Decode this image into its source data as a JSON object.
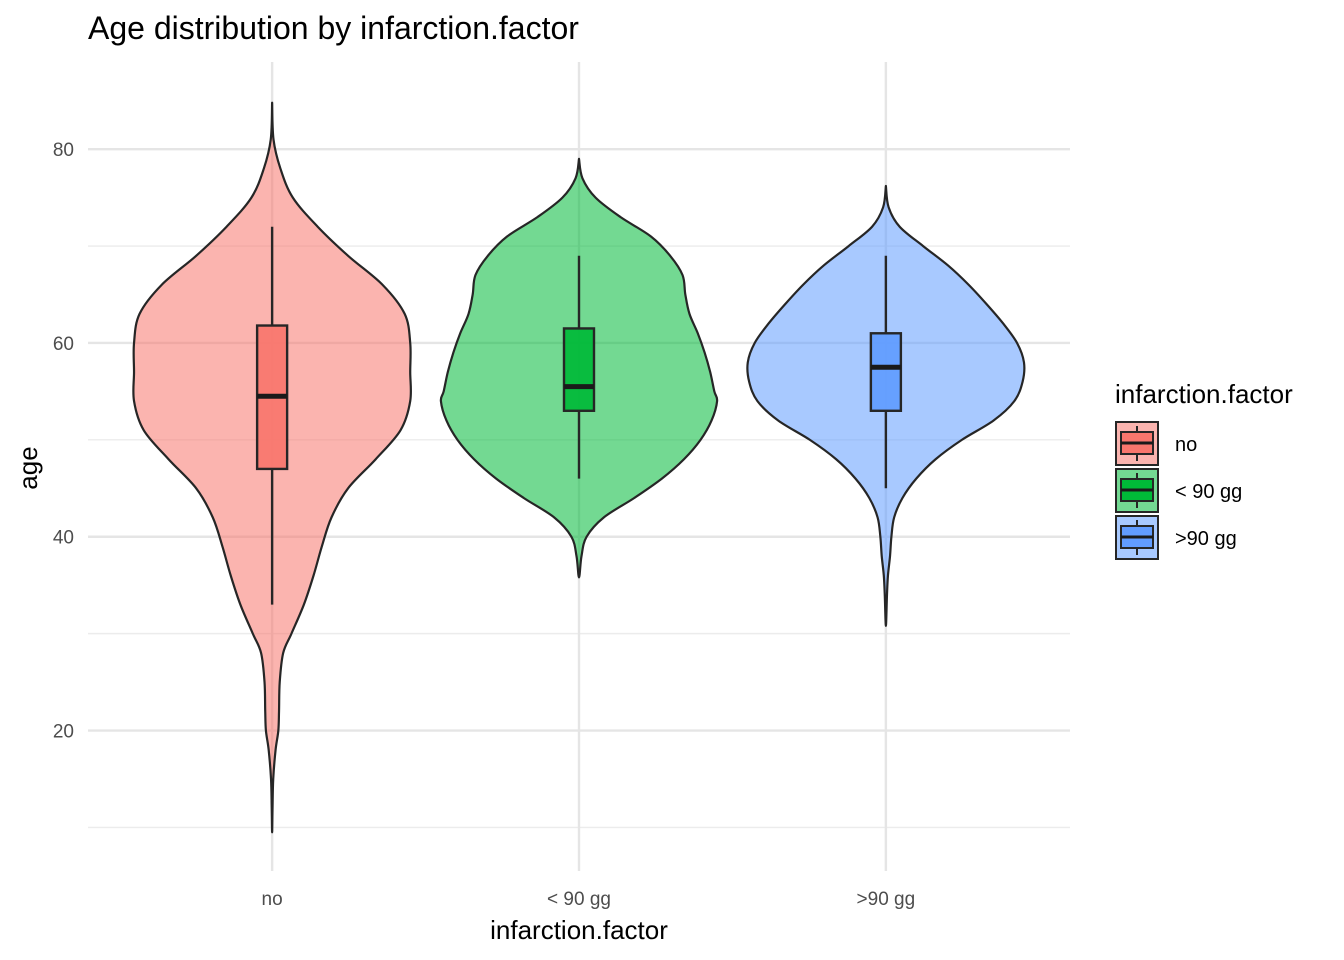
{
  "chart_data": {
    "type": "violin",
    "title": "Age distribution by infarction.factor",
    "xlabel": "infarction.factor",
    "ylabel": "age",
    "ylim": [
      5.5,
      89
    ],
    "y_ticks": [
      20,
      40,
      60,
      80
    ],
    "y_minor_ticks": [
      10,
      30,
      50,
      70
    ],
    "categories": [
      "no",
      "< 90 gg",
      ">90 gg"
    ],
    "grid": true,
    "legend": {
      "title": "infarction.factor",
      "position": "right",
      "entries": [
        "no",
        "< 90 gg",
        ">90 gg"
      ]
    },
    "series": [
      {
        "name": "no",
        "color": "#F8766D",
        "box": {
          "lower_whisker": 33,
          "q1": 47,
          "median": 54.5,
          "q3": 61.8,
          "upper_whisker": 72
        },
        "violin_range": [
          9.5,
          84.8
        ],
        "density_profile": [
          [
            84.8,
            0.0
          ],
          [
            81,
            0.01
          ],
          [
            78,
            0.06
          ],
          [
            75,
            0.15
          ],
          [
            72,
            0.33
          ],
          [
            69,
            0.55
          ],
          [
            66,
            0.8
          ],
          [
            63,
            0.96
          ],
          [
            60,
            1.0
          ],
          [
            57,
            1.0
          ],
          [
            54,
            1.0
          ],
          [
            51,
            0.93
          ],
          [
            48,
            0.75
          ],
          [
            45,
            0.55
          ],
          [
            42,
            0.43
          ],
          [
            39,
            0.36
          ],
          [
            36,
            0.3
          ],
          [
            33,
            0.23
          ],
          [
            30,
            0.14
          ],
          [
            28,
            0.08
          ],
          [
            25,
            0.055
          ],
          [
            22,
            0.05
          ],
          [
            20,
            0.045
          ],
          [
            18,
            0.025
          ],
          [
            15,
            0.008
          ],
          [
            12,
            0.003
          ],
          [
            9.5,
            0.0
          ]
        ]
      },
      {
        "name": "< 90 gg",
        "color": "#00BA38",
        "box": {
          "lower_whisker": 46,
          "q1": 53,
          "median": 55.5,
          "q3": 61.5,
          "upper_whisker": 69
        },
        "violin_range": [
          35.8,
          79
        ],
        "density_profile": [
          [
            79,
            0.0
          ],
          [
            77,
            0.025
          ],
          [
            75,
            0.12
          ],
          [
            73,
            0.3
          ],
          [
            71,
            0.52
          ],
          [
            69,
            0.66
          ],
          [
            67,
            0.75
          ],
          [
            65,
            0.77
          ],
          [
            63,
            0.8
          ],
          [
            61,
            0.86
          ],
          [
            59,
            0.91
          ],
          [
            57,
            0.95
          ],
          [
            55,
            0.98
          ],
          [
            54,
            1.0
          ],
          [
            52,
            0.96
          ],
          [
            50,
            0.88
          ],
          [
            48,
            0.76
          ],
          [
            46,
            0.6
          ],
          [
            44,
            0.4
          ],
          [
            42,
            0.18
          ],
          [
            40,
            0.055
          ],
          [
            38,
            0.018
          ],
          [
            35.8,
            0.0
          ]
        ]
      },
      {
        "name": ">90 gg",
        "color": "#619CFF",
        "box": {
          "lower_whisker": 45,
          "q1": 53,
          "median": 57.5,
          "q3": 61,
          "upper_whisker": 69
        },
        "violin_range": [
          30.8,
          76.2
        ],
        "density_profile": [
          [
            76.2,
            0.0
          ],
          [
            74,
            0.02
          ],
          [
            72,
            0.1
          ],
          [
            70,
            0.27
          ],
          [
            68,
            0.45
          ],
          [
            66,
            0.6
          ],
          [
            64,
            0.73
          ],
          [
            62,
            0.85
          ],
          [
            60,
            0.95
          ],
          [
            58,
            1.0
          ],
          [
            56,
            0.99
          ],
          [
            54,
            0.93
          ],
          [
            52,
            0.78
          ],
          [
            50,
            0.55
          ],
          [
            48,
            0.36
          ],
          [
            46,
            0.22
          ],
          [
            44,
            0.12
          ],
          [
            42,
            0.06
          ],
          [
            40,
            0.04
          ],
          [
            38,
            0.03
          ],
          [
            36,
            0.015
          ],
          [
            34,
            0.008
          ],
          [
            30.8,
            0.0
          ]
        ]
      }
    ]
  }
}
